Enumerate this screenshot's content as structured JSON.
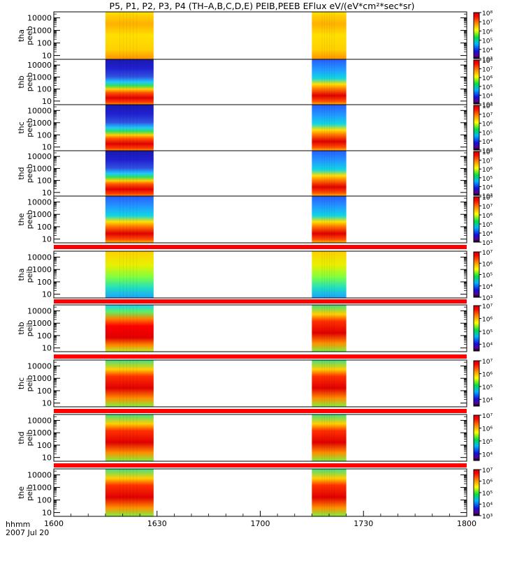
{
  "title": "P5, P1, P2, P3, P4 (TH–A,B,C,D,E) PEIB,PEEB EFlux eV/(eV*cm²*sec*sr)",
  "chart_data": {
    "type": "heatmap",
    "title": "P5, P1, P2, P3, P4 (TH–A,B,C,D,E) PEIB,PEEB EFlux eV/(eV*cm²*sec*sr)",
    "x_axis": {
      "label_line1": "hhmm",
      "label_line2": "2007 Jul 20",
      "range": [
        "1600",
        "1800"
      ],
      "range_minutes": [
        0,
        120
      ],
      "tick_labels": [
        "1600",
        "1630",
        "1700",
        "1730",
        "1800"
      ],
      "tick_values_minutes": [
        0,
        30,
        60,
        90,
        120
      ]
    },
    "data_intervals_minutes": [
      [
        15,
        29
      ],
      [
        75,
        85
      ]
    ],
    "y_axis": {
      "scale": "log",
      "unit": "eV",
      "range": [
        5,
        30000
      ],
      "tick_labels": [
        "10",
        "100",
        "1000",
        "10000"
      ],
      "tick_values": [
        10,
        100,
        1000,
        10000
      ]
    },
    "colorbar": {
      "scale": "log",
      "colormap": "rainbow (black-purple-blue-cyan-green-yellow-orange-red)",
      "electron_tick_labels": [
        "10³",
        "10⁴",
        "10⁵",
        "10⁶",
        "10⁷",
        "10⁸"
      ],
      "ion_tick_labels": [
        "10³",
        "10⁴",
        "10⁵",
        "10⁶",
        "10⁷"
      ]
    },
    "panels": [
      {
        "probe": "tha",
        "product": "peeb",
        "label_top": "tha",
        "label_bottom": "peeb",
        "cbar_range": [
          1000,
          100000000
        ]
      },
      {
        "probe": "thb",
        "product": "peeb",
        "label_top": "thb",
        "label_bottom": "peeb",
        "cbar_range": [
          1000,
          100000000
        ]
      },
      {
        "probe": "thc",
        "product": "peeb",
        "label_top": "thc",
        "label_bottom": "peeb",
        "cbar_range": [
          1000,
          100000000
        ]
      },
      {
        "probe": "thd",
        "product": "peeb",
        "label_top": "thd",
        "label_bottom": "peeb",
        "cbar_range": [
          1000,
          100000000
        ]
      },
      {
        "probe": "the",
        "product": "peeb",
        "label_top": "the",
        "label_bottom": "peeb",
        "cbar_range": [
          1000,
          100000000
        ]
      },
      {
        "probe": "tha",
        "product": "peib",
        "label_top": "tha",
        "label_bottom": "peib",
        "cbar_range": [
          1000,
          10000000
        ]
      },
      {
        "probe": "thb",
        "product": "peib",
        "label_top": "thb",
        "label_bottom": "peib",
        "cbar_range": [
          3000,
          10000000
        ]
      },
      {
        "probe": "thc",
        "product": "peib",
        "label_top": "thc",
        "label_bottom": "peib",
        "cbar_range": [
          3000,
          10000000
        ]
      },
      {
        "probe": "thd",
        "product": "peib",
        "label_top": "thd",
        "label_bottom": "peib",
        "cbar_range": [
          3000,
          10000000
        ]
      },
      {
        "probe": "the",
        "product": "peib",
        "label_top": "the",
        "label_bottom": "peib",
        "cbar_range": [
          1000,
          10000000
        ]
      }
    ]
  },
  "colors": {
    "background": "#ffffff",
    "separator_bar": "#ff0000",
    "frame": "#000000"
  }
}
